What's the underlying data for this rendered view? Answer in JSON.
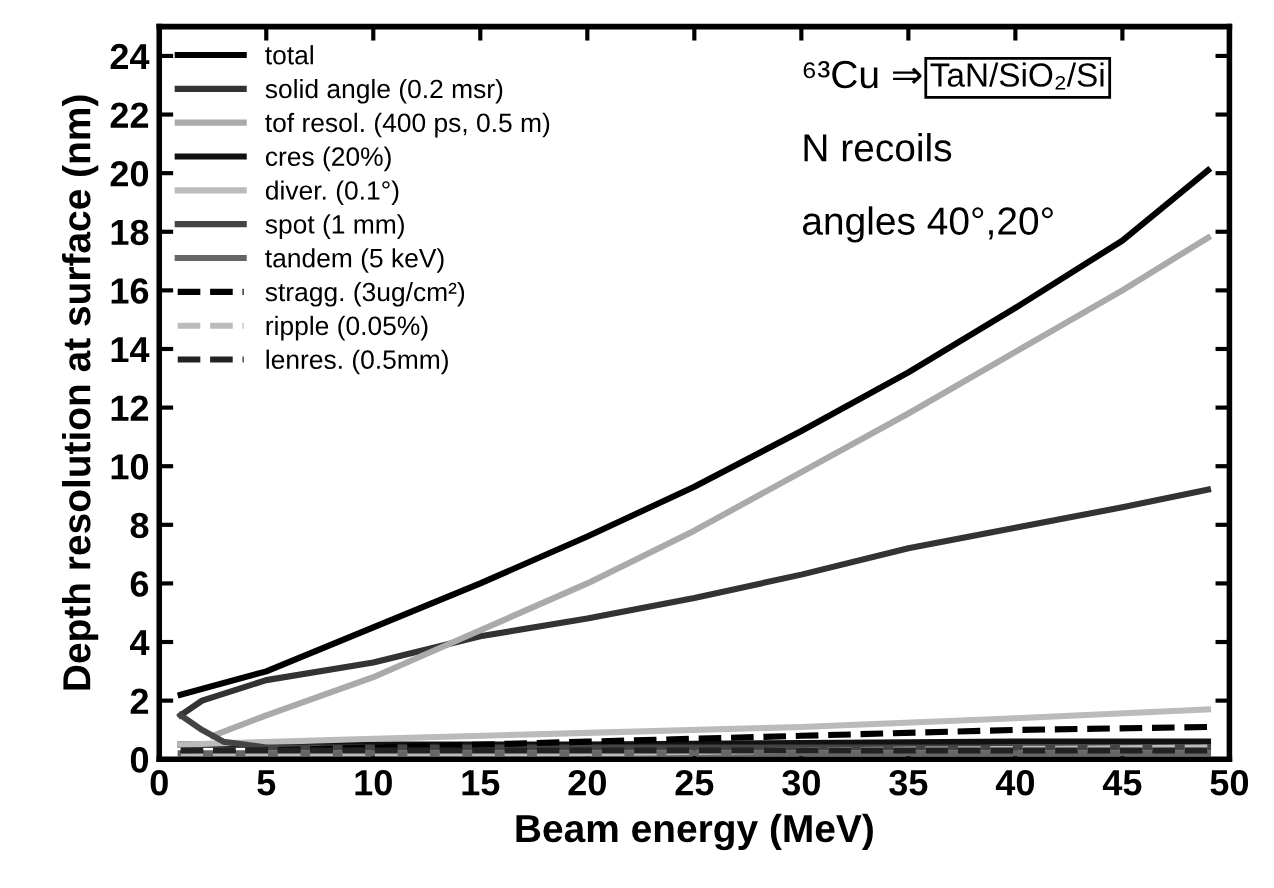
{
  "chart_data": {
    "type": "line",
    "xlabel": "Beam energy (MeV)",
    "ylabel": "Depth resolution at surface (nm)",
    "xlim": [
      0,
      50
    ],
    "ylim": [
      0,
      25
    ],
    "xticks": [
      0,
      5,
      10,
      15,
      20,
      25,
      30,
      35,
      40,
      45,
      50
    ],
    "yticks": [
      0,
      2,
      4,
      6,
      8,
      10,
      12,
      14,
      16,
      18,
      20,
      22,
      24
    ],
    "grid": false,
    "legend": "top left",
    "marker": "none",
    "annotations": [
      "⁶³Cu ⇒",
      "TaN/SiO₂/Si",
      "N recoils",
      "angles 40°,20°"
    ],
    "series": [
      {
        "name": "total",
        "color": "#000000",
        "line_style": "solid",
        "x": [
          1,
          5,
          10,
          15,
          20,
          25,
          30,
          35,
          40,
          45,
          49
        ],
        "values": [
          2.2,
          3.0,
          4.5,
          6.0,
          7.6,
          9.3,
          11.2,
          13.2,
          15.4,
          17.7,
          20.1
        ]
      },
      {
        "name": "solid angle (0.2 msr)",
        "color": "#333333",
        "line_style": "solid",
        "x": [
          1,
          2,
          5,
          10,
          15,
          20,
          25,
          30,
          35,
          40,
          45,
          49
        ],
        "values": [
          1.5,
          2.0,
          2.7,
          3.3,
          4.2,
          4.8,
          5.5,
          6.3,
          7.2,
          7.9,
          8.6,
          9.2
        ]
      },
      {
        "name": "tof resol. (400 ps, 0.5 m)",
        "color": "#aaaaaa",
        "line_style": "solid",
        "x": [
          2.5,
          5,
          10,
          15,
          20,
          25,
          30,
          35,
          40,
          45,
          49
        ],
        "values": [
          0.8,
          1.5,
          2.8,
          4.4,
          6.0,
          7.8,
          9.8,
          11.8,
          13.9,
          16.0,
          17.8
        ]
      },
      {
        "name": "cres (20%)",
        "color": "#111111",
        "line_style": "solid",
        "x": [
          1,
          10,
          20,
          30,
          40,
          49
        ],
        "values": [
          0.5,
          0.5,
          0.5,
          0.55,
          0.6,
          0.6
        ]
      },
      {
        "name": "diver. (0.1°)",
        "color": "#bbbbbb",
        "line_style": "solid",
        "x": [
          1,
          10,
          20,
          30,
          40,
          49
        ],
        "values": [
          0.5,
          0.7,
          0.9,
          1.1,
          1.4,
          1.7
        ]
      },
      {
        "name": "spot (1 mm)",
        "color": "#444444",
        "line_style": "solid",
        "x": [
          1,
          2,
          3,
          5,
          10,
          20,
          30,
          40,
          49
        ],
        "values": [
          1.5,
          1.0,
          0.6,
          0.4,
          0.4,
          0.4,
          0.4,
          0.4,
          0.4
        ]
      },
      {
        "name": "tandem (5 keV)",
        "color": "#666666",
        "line_style": "solid",
        "x": [
          1,
          10,
          20,
          30,
          40,
          49
        ],
        "values": [
          0.2,
          0.2,
          0.2,
          0.2,
          0.2,
          0.2
        ]
      },
      {
        "name": "stragg. (3ug/cm²)",
        "color": "#000000",
        "line_style": "dashed",
        "x": [
          1,
          5,
          10,
          20,
          30,
          40,
          49
        ],
        "values": [
          0.2,
          0.3,
          0.4,
          0.6,
          0.8,
          1.0,
          1.1
        ]
      },
      {
        "name": "ripple (0.05%)",
        "color": "#bbbbbb",
        "line_style": "dashed",
        "x": [
          1,
          10,
          20,
          30,
          40,
          49
        ],
        "values": [
          0.1,
          0.15,
          0.2,
          0.3,
          0.35,
          0.4
        ]
      },
      {
        "name": "lenres. (0.5mm)",
        "color": "#222222",
        "line_style": "dashed",
        "x": [
          1,
          10,
          20,
          30,
          40,
          49
        ],
        "values": [
          0.3,
          0.3,
          0.3,
          0.3,
          0.3,
          0.3
        ]
      }
    ]
  }
}
